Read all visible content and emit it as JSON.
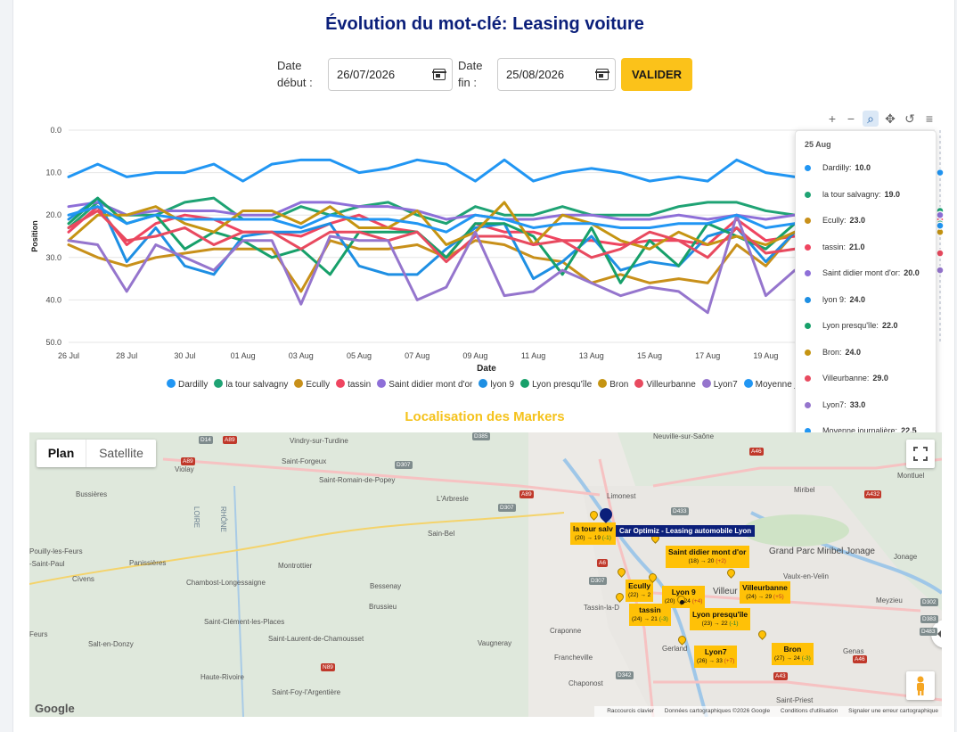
{
  "page": {
    "title": "Évolution du mot-clé: Leasing voiture",
    "date_start_label_1": "Date",
    "date_start_label_2": "début :",
    "date_start_value": "26/07/2026",
    "date_end_label_1": "Date",
    "date_end_label_2": "fin :",
    "date_end_value": "25/08/2026",
    "submit_label": "VALIDER",
    "map_title": "Localisation des Markers"
  },
  "toolbar": {
    "zoom_in": "+",
    "zoom_out": "−",
    "zoom_select": "⌕",
    "pan": "✥",
    "reset": "↺",
    "menu": "≡"
  },
  "chart_data": {
    "type": "line",
    "xlabel": "Date",
    "ylabel": "Position",
    "ylim": [
      50,
      0
    ],
    "y_reversed": true,
    "y_ticks": [
      "0.0",
      "10.0",
      "20.0",
      "30.0",
      "40.0",
      "50.0"
    ],
    "x_tick_labels": [
      "26 Jul",
      "28 Jul",
      "30 Jul",
      "01 Aug",
      "03 Aug",
      "05 Aug",
      "07 Aug",
      "09 Aug",
      "11 Aug",
      "13 Aug",
      "15 Aug",
      "17 Aug",
      "19 Aug"
    ],
    "x": [
      "26 Jul",
      "27 Jul",
      "28 Jul",
      "29 Jul",
      "30 Jul",
      "31 Jul",
      "01 Aug",
      "02 Aug",
      "03 Aug",
      "04 Aug",
      "05 Aug",
      "06 Aug",
      "07 Aug",
      "08 Aug",
      "09 Aug",
      "10 Aug",
      "11 Aug",
      "12 Aug",
      "13 Aug",
      "14 Aug",
      "15 Aug",
      "16 Aug",
      "17 Aug",
      "18 Aug",
      "19 Aug",
      "20 Aug",
      "21 Aug",
      "22 Aug",
      "23 Aug",
      "24 Aug",
      "25 Aug"
    ],
    "legend_position": "bottom",
    "grid": true,
    "series": [
      {
        "name": "Dardilly",
        "color": "#2196f3",
        "values": [
          11,
          8,
          11,
          10,
          10,
          8,
          12,
          8,
          7,
          7,
          10,
          9,
          7,
          8,
          12,
          7,
          12,
          10,
          9,
          10,
          12,
          11,
          12,
          7,
          10,
          11,
          9,
          9,
          10,
          9,
          10
        ]
      },
      {
        "name": "la tour salvagny",
        "color": "#1fa374",
        "values": [
          23,
          17,
          20,
          20,
          17,
          16,
          21,
          21,
          18,
          20,
          18,
          17,
          20,
          22,
          18,
          20,
          20,
          18,
          20,
          20,
          20,
          18,
          17,
          17,
          19,
          20,
          19,
          19,
          19,
          19,
          19
        ]
      },
      {
        "name": "Ecully",
        "color": "#c8901a",
        "values": [
          27,
          30,
          32,
          30,
          29,
          28,
          28,
          28,
          38,
          26,
          28,
          28,
          27,
          30,
          26,
          27,
          30,
          31,
          36,
          34,
          36,
          35,
          36,
          27,
          32,
          24,
          25,
          23,
          24,
          23,
          23
        ]
      },
      {
        "name": "tassin",
        "color": "#ef4560",
        "values": [
          24,
          18,
          27,
          22,
          20,
          21,
          24,
          24,
          25,
          22,
          20,
          23,
          24,
          30,
          22,
          24,
          24,
          26,
          26,
          27,
          26,
          26,
          27,
          21,
          26,
          25,
          22,
          22,
          21,
          21,
          21
        ]
      },
      {
        "name": "Saint didier mont d'or",
        "color": "#8e6fd8",
        "values": [
          18,
          17,
          20,
          19,
          19,
          19,
          20,
          20,
          17,
          17,
          18,
          18,
          19,
          21,
          20,
          21,
          21,
          20,
          20,
          21,
          21,
          20,
          21,
          20,
          21,
          20,
          20,
          20,
          20,
          20,
          20
        ]
      },
      {
        "name": "lyon 9",
        "color": "#1e8fe3",
        "values": [
          21,
          16,
          31,
          23,
          32,
          34,
          25,
          24,
          24,
          22,
          32,
          34,
          34,
          28,
          23,
          22,
          35,
          31,
          25,
          33,
          31,
          32,
          25,
          23,
          31,
          24,
          24,
          24,
          24,
          24,
          24
        ]
      },
      {
        "name": "Lyon presqu'île",
        "color": "#17a06a",
        "values": [
          22,
          16,
          22,
          20,
          28,
          24,
          26,
          30,
          28,
          34,
          24,
          24,
          24,
          30,
          22,
          22,
          25,
          34,
          23,
          36,
          26,
          32,
          22,
          25,
          28,
          22,
          22,
          22,
          22,
          22,
          22
        ]
      },
      {
        "name": "Bron",
        "color": "#c59412",
        "values": [
          26,
          20,
          20,
          18,
          22,
          24,
          19,
          19,
          22,
          18,
          23,
          23,
          19,
          27,
          24,
          17,
          27,
          20,
          22,
          26,
          28,
          24,
          27,
          25,
          27,
          24,
          24,
          24,
          24,
          24,
          24
        ]
      },
      {
        "name": "Villeurbanne",
        "color": "#e84a5f",
        "values": [
          23,
          19,
          26,
          25,
          23,
          27,
          24,
          24,
          28,
          24,
          24,
          26,
          24,
          31,
          25,
          25,
          27,
          26,
          30,
          28,
          24,
          26,
          30,
          23,
          29,
          28,
          29,
          29,
          29,
          29,
          29
        ]
      },
      {
        "name": "Lyon7",
        "color": "#9575cd",
        "values": [
          26,
          27,
          38,
          27,
          30,
          33,
          26,
          26,
          41,
          25,
          26,
          26,
          40,
          37,
          24,
          39,
          38,
          33,
          36,
          39,
          37,
          38,
          43,
          20,
          39,
          33,
          33,
          33,
          33,
          33,
          33
        ]
      },
      {
        "name": "Moyenne journalière",
        "color": "#2196f3",
        "values": [
          20,
          18,
          22,
          20,
          21,
          21,
          21,
          21,
          23,
          20,
          21,
          21,
          22,
          24,
          20,
          21,
          23,
          22,
          22,
          23,
          23,
          22,
          22,
          20,
          23,
          22,
          22,
          22,
          22,
          22.5,
          22.5
        ]
      }
    ]
  },
  "chart_legend_labels": [
    "Dardilly",
    "la tour salvagny",
    "Ecully",
    "tassin",
    "Saint didier mont d'or",
    "lyon 9",
    "Lyon presqu'île",
    "Bron",
    "Villeurbanne",
    "Lyon7",
    "Moyenne jo"
  ],
  "tooltip": {
    "title": "25 Aug",
    "rows": [
      {
        "name": "Dardilly:",
        "value": "10.0",
        "color": "#2196f3"
      },
      {
        "name": "la tour salvagny:",
        "value": "19.0",
        "color": "#1fa374"
      },
      {
        "name": "Ecully:",
        "value": "23.0",
        "color": "#c8901a"
      },
      {
        "name": "tassin:",
        "value": "21.0",
        "color": "#ef4560"
      },
      {
        "name": "Saint didier mont d'or:",
        "value": "20.0",
        "color": "#8e6fd8"
      },
      {
        "name": "lyon 9:",
        "value": "24.0",
        "color": "#1e8fe3"
      },
      {
        "name": "Lyon presqu'île:",
        "value": "22.0",
        "color": "#17a06a"
      },
      {
        "name": "Bron:",
        "value": "24.0",
        "color": "#c59412"
      },
      {
        "name": "Villeurbanne:",
        "value": "29.0",
        "color": "#e84a5f"
      },
      {
        "name": "Lyon7:",
        "value": "33.0",
        "color": "#9575cd"
      },
      {
        "name": "Moyenne journalière:",
        "value": "22.5",
        "color": "#2196f3"
      }
    ]
  },
  "map": {
    "type_plan": "Plan",
    "type_satellite": "Satellite",
    "places": [
      "Vindry-sur-Turdine",
      "Saint-Forgeux",
      "Saint-Romain-de-Popey",
      "Bussières",
      "Violay",
      "L'Arbresle",
      "Sain-Bel",
      "Pouilly-les-Feurs",
      "-Saint-Paul",
      "Panissières",
      "Montrottier",
      "Cívens",
      "Chambost-Longessaigne",
      "Bessenay",
      "Brussieu",
      "Saint-Clément-les-Places",
      "Saint-Laurent-de-Chamousset",
      "Salt-en-Donzy",
      "Vaugneray",
      "Craponne",
      "Francheville",
      "Chaponost",
      "Haute-Rivoire",
      "Saint-Foy-l'Argentière",
      "Neuville-sur-Saône",
      "Limonest",
      "Miribel",
      "Montluel",
      "Grand Parc Miribel Jonage",
      "Jonage",
      "Vaulx-en-Velin",
      "Meyzieu",
      "Genas",
      "Saint-Priest",
      "Feurs",
      "Tassin-la-D",
      "Gerland",
      "Villeur"
    ],
    "road_tags": [
      "D14",
      "A89",
      "D307",
      "D385",
      "A89",
      "D307",
      "A46",
      "D433",
      "A432",
      "A6",
      "D307",
      "D342",
      "A43",
      "N89",
      "A89",
      "A46",
      "D302",
      "D383",
      "D483"
    ],
    "river_labels": [
      "LOIRE",
      "RHÔNE"
    ],
    "markers": [
      {
        "title": "la tour salv",
        "sub": "(20) → 19",
        "delta": "(-1)",
        "delta_kind": "g"
      },
      {
        "title": "Saint didier mont d'or",
        "sub": "(18) → 20",
        "delta": "(+2)",
        "delta_kind": "d"
      },
      {
        "title": "Ecully",
        "sub": "(22) → 2",
        "delta": "",
        "delta_kind": "g"
      },
      {
        "title": "Lyon 9",
        "sub": "(20) → 24",
        "delta": "(+4)",
        "delta_kind": "d"
      },
      {
        "title": "Villeurbanne",
        "sub": "(24) → 29",
        "delta": "(+5)",
        "delta_kind": "d"
      },
      {
        "title": "tassin",
        "sub": "(24) → 21",
        "delta": "(-3)",
        "delta_kind": "g"
      },
      {
        "title": "Lyon presqu'île",
        "sub": "(23) → 22",
        "delta": "(-1)",
        "delta_kind": "g"
      },
      {
        "title": "Lyon7",
        "sub": "(26) → 33",
        "delta": "(+7)",
        "delta_kind": "d"
      },
      {
        "title": "Bron",
        "sub": "(27) → 24",
        "delta": "(-3)",
        "delta_kind": "g"
      }
    ],
    "hq_label": "Car Optimiz - Leasing automobile Lyon",
    "attribution": [
      "Raccourcis clavier",
      "Données cartographiques ©2026 Google",
      "Conditions d'utilisation",
      "Signaler une erreur cartographique"
    ],
    "google_logo": "Google"
  }
}
